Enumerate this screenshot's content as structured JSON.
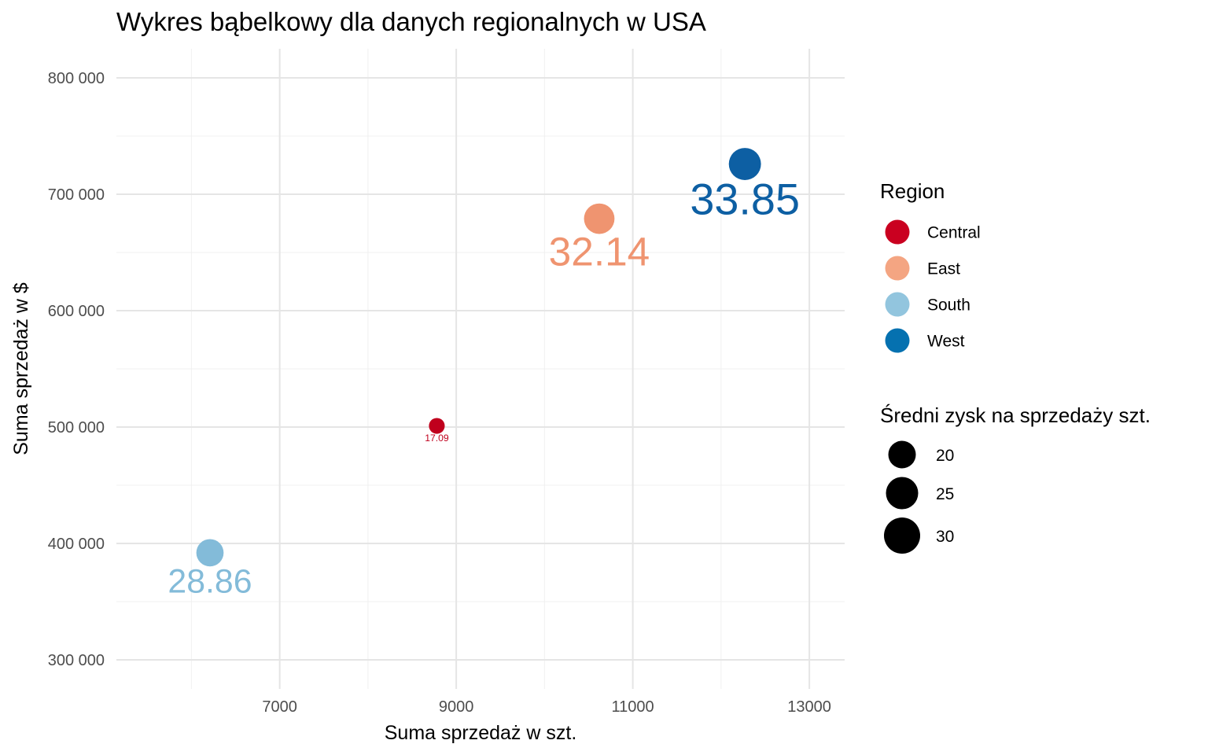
{
  "chart_data": {
    "type": "scatter",
    "title": "Wykres bąbelkowy dla danych regionalnych w USA",
    "xlabel": "Suma sprzedaż w szt.",
    "ylabel": "Suma sprzedaż w $",
    "xlim": [
      5150,
      13400
    ],
    "ylim": [
      275000,
      825000
    ],
    "x_ticks": [
      7000,
      9000,
      11000,
      13000
    ],
    "x_tick_labels": [
      "7000",
      "9000",
      "11000",
      "13000"
    ],
    "y_ticks": [
      300000,
      400000,
      500000,
      600000,
      700000,
      800000
    ],
    "y_tick_labels": [
      "300 000",
      "400 000",
      "500 000",
      "600 000",
      "700 000",
      "800 000"
    ],
    "grid": true,
    "legend_position": "right",
    "color_legend": {
      "title": "Region",
      "entries": [
        {
          "label": "Central",
          "color": "#ca0020"
        },
        {
          "label": "East",
          "color": "#f4a582"
        },
        {
          "label": "South",
          "color": "#92c5de"
        },
        {
          "label": "West",
          "color": "#0571b0"
        }
      ]
    },
    "size_legend": {
      "title": "Średni zysk na sprzedaży szt.",
      "entries": [
        {
          "label": "20",
          "value": 20
        },
        {
          "label": "25",
          "value": 25
        },
        {
          "label": "30",
          "value": 30
        }
      ]
    },
    "points": [
      {
        "region": "Central",
        "x": 8780,
        "y": 501000,
        "size": 17.09,
        "label": "17.09",
        "color": "#c0001d"
      },
      {
        "region": "East",
        "x": 10620,
        "y": 679000,
        "size": 32.14,
        "label": "32.14",
        "color": "#ef9470"
      },
      {
        "region": "South",
        "x": 6210,
        "y": 392000,
        "size": 28.86,
        "label": "28.86",
        "color": "#83bbd9"
      },
      {
        "region": "West",
        "x": 12270,
        "y": 726000,
        "size": 33.85,
        "label": "33.85",
        "color": "#0d5fa3"
      }
    ]
  }
}
